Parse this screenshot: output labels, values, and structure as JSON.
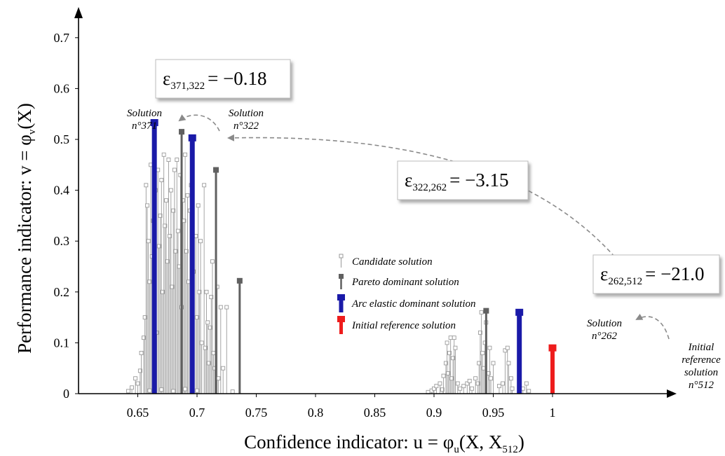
{
  "chart_data": {
    "type": "scatter",
    "xlabel": "Confidence indicator: u = φu(X, X512)",
    "xlabel_parts": {
      "main": "Confidence indicator:  u = φ",
      "sub1": "u",
      "rest": "(X, X",
      "sub2": "512",
      "end": ")"
    },
    "ylabel": "Performance indicator:  v = φv(X)",
    "ylabel_parts": {
      "main": "Performance indicator:  v = φ",
      "sub1": "v",
      "rest": "(X)"
    },
    "xlim": [
      0.6,
      1.01
    ],
    "ylim": [
      0,
      0.75
    ],
    "x_ticks": [
      "0.65",
      "0.7",
      "0.75",
      "0.8",
      "0.85",
      "0.9",
      "0.95",
      "1"
    ],
    "y_ticks": [
      "0",
      "0.1",
      "0.2",
      "0.3",
      "0.4",
      "0.5",
      "0.6",
      "0.7"
    ],
    "legend": [
      {
        "label": "Candidate solution",
        "style": "candidate",
        "color": "#9a9a9a"
      },
      {
        "label": "Pareto dominant solution",
        "style": "pareto",
        "color": "#606060"
      },
      {
        "label": "Arc elastic dominant solution",
        "style": "arc",
        "color": "#1a1aa8"
      },
      {
        "label": "Initial reference solution",
        "style": "initial",
        "color": "#ee1c1c"
      }
    ],
    "candidate_series": {
      "name": "Candidate solution",
      "points": [
        [
          0.642,
          0.005
        ],
        [
          0.645,
          0.012
        ],
        [
          0.648,
          0.03
        ],
        [
          0.65,
          0.02
        ],
        [
          0.652,
          0.045
        ],
        [
          0.653,
          0.08
        ],
        [
          0.655,
          0.11
        ],
        [
          0.656,
          0.15
        ],
        [
          0.657,
          0.41
        ],
        [
          0.658,
          0.37
        ],
        [
          0.659,
          0.3
        ],
        [
          0.66,
          0.22
        ],
        [
          0.661,
          0.45
        ],
        [
          0.662,
          0.27
        ],
        [
          0.663,
          0.34
        ],
        [
          0.664,
          0.18
        ],
        [
          0.665,
          0.4
        ],
        [
          0.666,
          0.12
        ],
        [
          0.667,
          0.44
        ],
        [
          0.668,
          0.29
        ],
        [
          0.669,
          0.35
        ],
        [
          0.67,
          0.42
        ],
        [
          0.671,
          0.2
        ],
        [
          0.672,
          0.47
        ],
        [
          0.673,
          0.33
        ],
        [
          0.674,
          0.38
        ],
        [
          0.675,
          0.26
        ],
        [
          0.676,
          0.46
        ],
        [
          0.677,
          0.31
        ],
        [
          0.678,
          0.4
        ],
        [
          0.679,
          0.21
        ],
        [
          0.68,
          0.36
        ],
        [
          0.681,
          0.44
        ],
        [
          0.682,
          0.28
        ],
        [
          0.683,
          0.46
        ],
        [
          0.684,
          0.32
        ],
        [
          0.685,
          0.25
        ],
        [
          0.686,
          0.43
        ],
        [
          0.687,
          0.17
        ],
        [
          0.688,
          0.38
        ],
        [
          0.689,
          0.34
        ],
        [
          0.69,
          0.47
        ],
        [
          0.691,
          0.28
        ],
        [
          0.692,
          0.39
        ],
        [
          0.693,
          0.22
        ],
        [
          0.694,
          0.36
        ],
        [
          0.695,
          0.41
        ],
        [
          0.697,
          0.24
        ],
        [
          0.699,
          0.31
        ],
        [
          0.7,
          0.15
        ],
        [
          0.701,
          0.37
        ],
        [
          0.702,
          0.2
        ],
        [
          0.703,
          0.3
        ],
        [
          0.704,
          0.1
        ],
        [
          0.706,
          0.41
        ],
        [
          0.707,
          0.09
        ],
        [
          0.708,
          0.2
        ],
        [
          0.709,
          0.14
        ],
        [
          0.71,
          0.06
        ],
        [
          0.711,
          0.13
        ],
        [
          0.712,
          0.19
        ],
        [
          0.713,
          0.26
        ],
        [
          0.714,
          0.08
        ],
        [
          0.715,
          0.05
        ],
        [
          0.717,
          0.21
        ],
        [
          0.718,
          0.03
        ],
        [
          0.72,
          0.17
        ],
        [
          0.722,
          0.05
        ],
        [
          0.725,
          0.17
        ],
        [
          0.73,
          0.004
        ],
        [
          0.66,
          0.006
        ],
        [
          0.67,
          0.008
        ],
        [
          0.68,
          0.005
        ],
        [
          0.69,
          0.009
        ],
        [
          0.7,
          0.006
        ],
        [
          0.895,
          0.003
        ],
        [
          0.898,
          0.006
        ],
        [
          0.9,
          0.01
        ],
        [
          0.902,
          0.015
        ],
        [
          0.905,
          0.02
        ],
        [
          0.907,
          0.008
        ],
        [
          0.908,
          0.035
        ],
        [
          0.91,
          0.06
        ],
        [
          0.911,
          0.1
        ],
        [
          0.912,
          0.04
        ],
        [
          0.913,
          0.08
        ],
        [
          0.914,
          0.11
        ],
        [
          0.915,
          0.03
        ],
        [
          0.916,
          0.07
        ],
        [
          0.917,
          0.11
        ],
        [
          0.918,
          0.09
        ],
        [
          0.92,
          0.02
        ],
        [
          0.922,
          0.01
        ],
        [
          0.925,
          0.015
        ],
        [
          0.928,
          0.02
        ],
        [
          0.93,
          0.025
        ],
        [
          0.932,
          0.01
        ],
        [
          0.935,
          0.03
        ],
        [
          0.937,
          0.02
        ],
        [
          0.938,
          0.06
        ],
        [
          0.939,
          0.12
        ],
        [
          0.94,
          0.16
        ],
        [
          0.941,
          0.08
        ],
        [
          0.942,
          0.05
        ],
        [
          0.943,
          0.1
        ],
        [
          0.944,
          0.14
        ],
        [
          0.946,
          0.04
        ],
        [
          0.947,
          0.09
        ],
        [
          0.948,
          0.03
        ],
        [
          0.95,
          0.06
        ],
        [
          0.955,
          0.015
        ],
        [
          0.958,
          0.02
        ],
        [
          0.96,
          0.085
        ],
        [
          0.962,
          0.09
        ],
        [
          0.963,
          0.06
        ],
        [
          0.965,
          0.03
        ],
        [
          0.966,
          0.01
        ],
        [
          0.975,
          0.01
        ],
        [
          0.978,
          0.02
        ],
        [
          0.98,
          0.005
        ]
      ]
    },
    "pareto_series": {
      "name": "Pareto dominant solution",
      "points": [
        [
          0.687,
          0.515
        ],
        [
          0.716,
          0.44
        ],
        [
          0.736,
          0.222
        ],
        [
          0.944,
          0.163
        ]
      ]
    },
    "arc_series": {
      "name": "Arc elastic dominant solution",
      "points": [
        {
          "x": 0.664,
          "y": 0.533,
          "label": [
            "Solution",
            "n°371"
          ]
        },
        {
          "x": 0.696,
          "y": 0.503,
          "label": [
            "Solution",
            "n°322"
          ]
        },
        {
          "x": 0.972,
          "y": 0.16,
          "label": [
            "Solution",
            "n°262"
          ]
        }
      ]
    },
    "initial_series": {
      "name": "Initial reference solution",
      "points": [
        {
          "x": 1.0,
          "y": 0.09,
          "label": [
            "Initial",
            "reference",
            "solution",
            "n°512"
          ]
        }
      ]
    },
    "elasticities": [
      {
        "symbol": "ε",
        "sub": "371,322",
        "value": "= −0.18"
      },
      {
        "symbol": "ε",
        "sub": "322,262",
        "value": "= −3.15"
      },
      {
        "symbol": "ε",
        "sub": "262,512",
        "value": "= −21.0"
      }
    ],
    "grid": false,
    "legend_placement": "center"
  }
}
